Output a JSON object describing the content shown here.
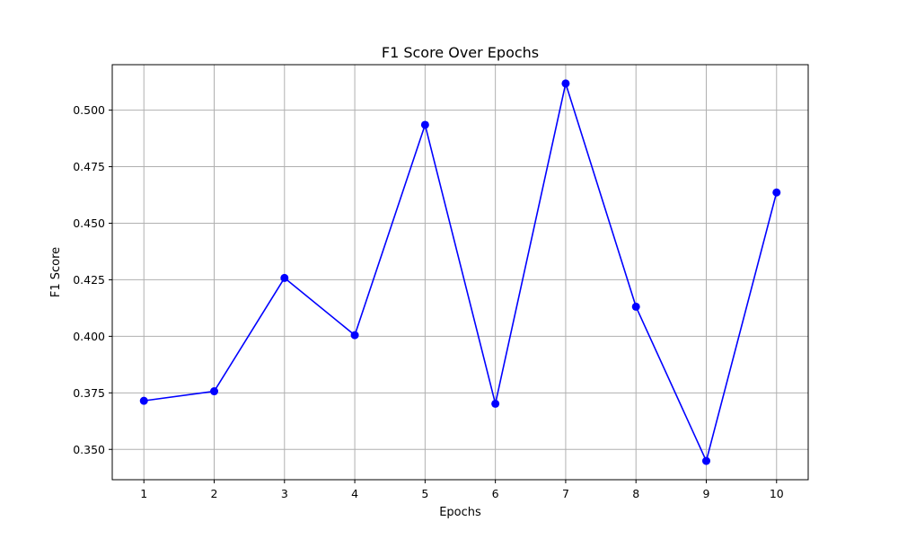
{
  "chart_data": {
    "type": "line",
    "title": "F1 Score Over Epochs",
    "xlabel": "Epochs",
    "ylabel": "F1 Score",
    "x": [
      1,
      2,
      3,
      4,
      5,
      6,
      7,
      8,
      9,
      10
    ],
    "x_tick_labels": [
      "1",
      "2",
      "3",
      "4",
      "5",
      "6",
      "7",
      "8",
      "9",
      "10"
    ],
    "y_ticks": [
      0.35,
      0.375,
      0.4,
      0.425,
      0.45,
      0.475,
      0.5
    ],
    "y_tick_labels": [
      "0.350",
      "0.375",
      "0.400",
      "0.425",
      "0.450",
      "0.475",
      "0.500"
    ],
    "series": [
      {
        "values": [
          0.3715,
          0.3757,
          0.4258,
          0.4005,
          0.4935,
          0.3702,
          0.5118,
          0.4131,
          0.3449,
          0.4636
        ],
        "color": "#0000ff",
        "marker": "circle"
      }
    ],
    "xlim": [
      0.55,
      10.45
    ],
    "ylim": [
      0.3366,
      0.5201
    ],
    "grid": true
  }
}
